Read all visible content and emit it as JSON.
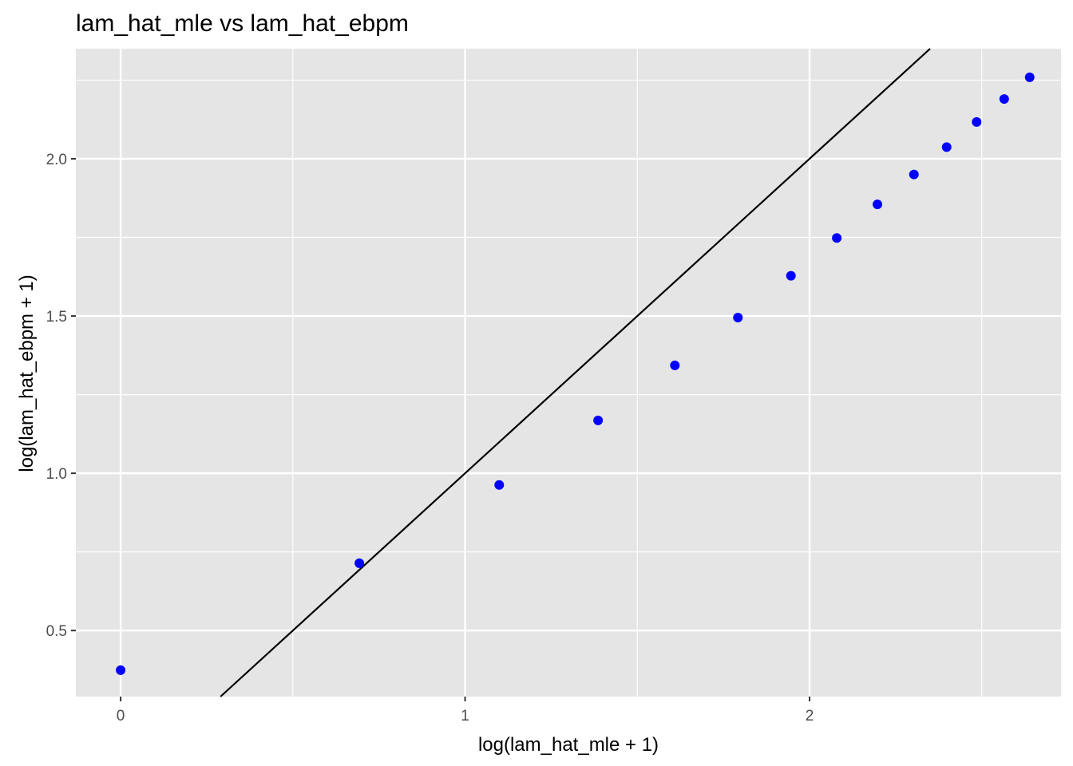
{
  "chart_data": {
    "type": "scatter",
    "title": "lam_hat_mle vs lam_hat_ebpm",
    "xlabel": "log(lam_hat_mle + 1)",
    "ylabel": "log(lam_hat_ebpm + 1)",
    "xlim": [
      -0.13,
      2.73
    ],
    "ylim": [
      0.29,
      2.35
    ],
    "x_ticks": [
      0,
      1,
      2
    ],
    "x_tick_labels": [
      "0",
      "1",
      "2"
    ],
    "y_ticks": [
      0.5,
      1.0,
      1.5,
      2.0
    ],
    "y_tick_labels": [
      "0.5",
      "1.0",
      "1.5",
      "2.0"
    ],
    "grid": true,
    "background_color": "#e5e5e5",
    "grid_color": "#ffffff",
    "point_color": "#0000ff",
    "reference_line": {
      "type": "identity",
      "slope": 1,
      "intercept": 0,
      "color": "#000000"
    },
    "points": [
      {
        "x": 0.0,
        "y": 0.374
      },
      {
        "x": 0.693,
        "y": 0.714
      },
      {
        "x": 1.099,
        "y": 0.963
      },
      {
        "x": 1.386,
        "y": 1.168
      },
      {
        "x": 1.609,
        "y": 1.343
      },
      {
        "x": 1.792,
        "y": 1.495
      },
      {
        "x": 1.946,
        "y": 1.628
      },
      {
        "x": 2.079,
        "y": 1.748
      },
      {
        "x": 2.197,
        "y": 1.855
      },
      {
        "x": 2.303,
        "y": 1.95
      },
      {
        "x": 2.398,
        "y": 2.037
      },
      {
        "x": 2.485,
        "y": 2.117
      },
      {
        "x": 2.565,
        "y": 2.19
      },
      {
        "x": 2.639,
        "y": 2.259
      }
    ]
  }
}
